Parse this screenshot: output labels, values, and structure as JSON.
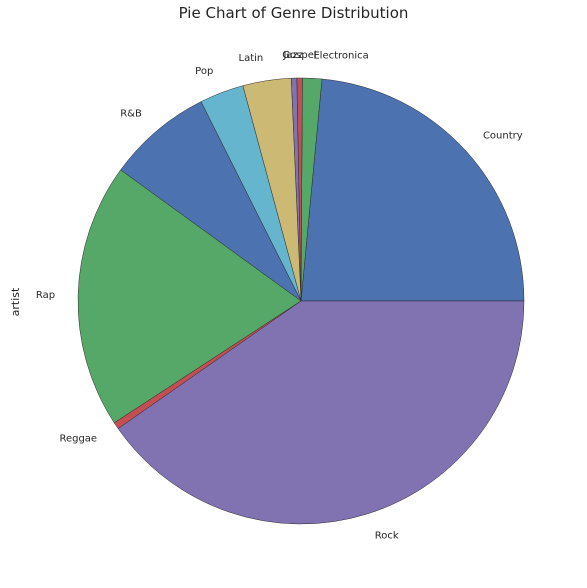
{
  "chart_data": {
    "type": "pie",
    "title": "Pie Chart of Genre Distribution",
    "ylabel": "artist",
    "xlabel": "",
    "start_angle_deg": 0,
    "direction": "counterclockwise",
    "slices": [
      {
        "label": "Country",
        "value": 23.5,
        "color": "#4C72B0"
      },
      {
        "label": "Electronica",
        "value": 1.4,
        "color": "#55A868"
      },
      {
        "label": "Gospel",
        "value": 0.4,
        "color": "#C44E52"
      },
      {
        "label": "Jazz",
        "value": 0.4,
        "color": "#8172B2"
      },
      {
        "label": "Latin",
        "value": 3.5,
        "color": "#CCB974"
      },
      {
        "label": "Pop",
        "value": 3.2,
        "color": "#64B5CD"
      },
      {
        "label": "R&B",
        "value": 7.6,
        "color": "#4C72B0"
      },
      {
        "label": "Rap",
        "value": 19.2,
        "color": "#55A868"
      },
      {
        "label": "Reggae",
        "value": 0.5,
        "color": "#C44E52"
      },
      {
        "label": "Rock",
        "value": 40.3,
        "color": "#8172B2"
      }
    ]
  }
}
